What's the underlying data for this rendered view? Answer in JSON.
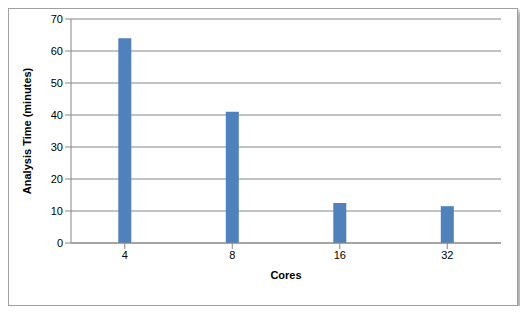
{
  "chart_data": {
    "type": "bar",
    "x_label": "Cores",
    "y_label": "Analysis Time (minutes)",
    "categories": [
      "4",
      "8",
      "16",
      "32"
    ],
    "values": [
      64,
      41,
      12.5,
      11.5
    ],
    "color": "#4f81bd",
    "ylim": [
      0,
      70
    ],
    "yticks": [
      0,
      10,
      20,
      30,
      40,
      50,
      60,
      70
    ],
    "grid": true
  }
}
